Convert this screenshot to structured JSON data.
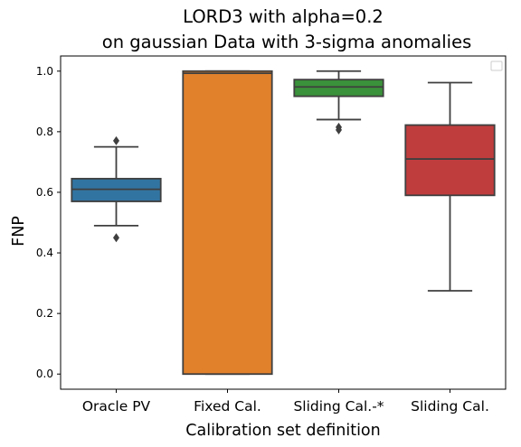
{
  "chart_data": {
    "type": "box",
    "title": "LORD3 with alpha=0.2",
    "subtitle": "on gaussian Data with 3-sigma anomalies",
    "xlabel": "Calibration set definition",
    "ylabel": "FNP",
    "ylim": [
      -0.05,
      1.05
    ],
    "yticks": [
      "0.0",
      "0.2",
      "0.4",
      "0.6",
      "0.8",
      "1.0"
    ],
    "ytick_values": [
      0.0,
      0.2,
      0.4,
      0.6,
      0.8,
      1.0
    ],
    "grid": false,
    "legend": {
      "placement": "top-right",
      "entries": []
    },
    "categories": [
      "Oracle PV",
      "Fixed Cal.",
      "Sliding Cal.-*",
      "Sliding Cal."
    ],
    "boxes": [
      {
        "category": "Oracle PV",
        "color": "#3274a1",
        "whisker_low": 0.49,
        "q1": 0.57,
        "median": 0.61,
        "q3": 0.645,
        "whisker_high": 0.75,
        "outliers": [
          0.77,
          0.45
        ]
      },
      {
        "category": "Fixed Cal.",
        "color": "#e1812c",
        "whisker_low": 0.0,
        "q1": 0.0,
        "median": 0.993,
        "q3": 1.0,
        "whisker_high": 1.0,
        "outliers": []
      },
      {
        "category": "Sliding Cal.-*",
        "color": "#3a923a",
        "whisker_low": 0.84,
        "q1": 0.917,
        "median": 0.948,
        "q3": 0.972,
        "whisker_high": 1.0,
        "outliers": [
          0.815,
          0.806
        ]
      },
      {
        "category": "Sliding Cal.",
        "color": "#c03d3e",
        "whisker_low": 0.275,
        "q1": 0.59,
        "median": 0.71,
        "q3": 0.822,
        "whisker_high": 0.962,
        "outliers": []
      }
    ]
  }
}
